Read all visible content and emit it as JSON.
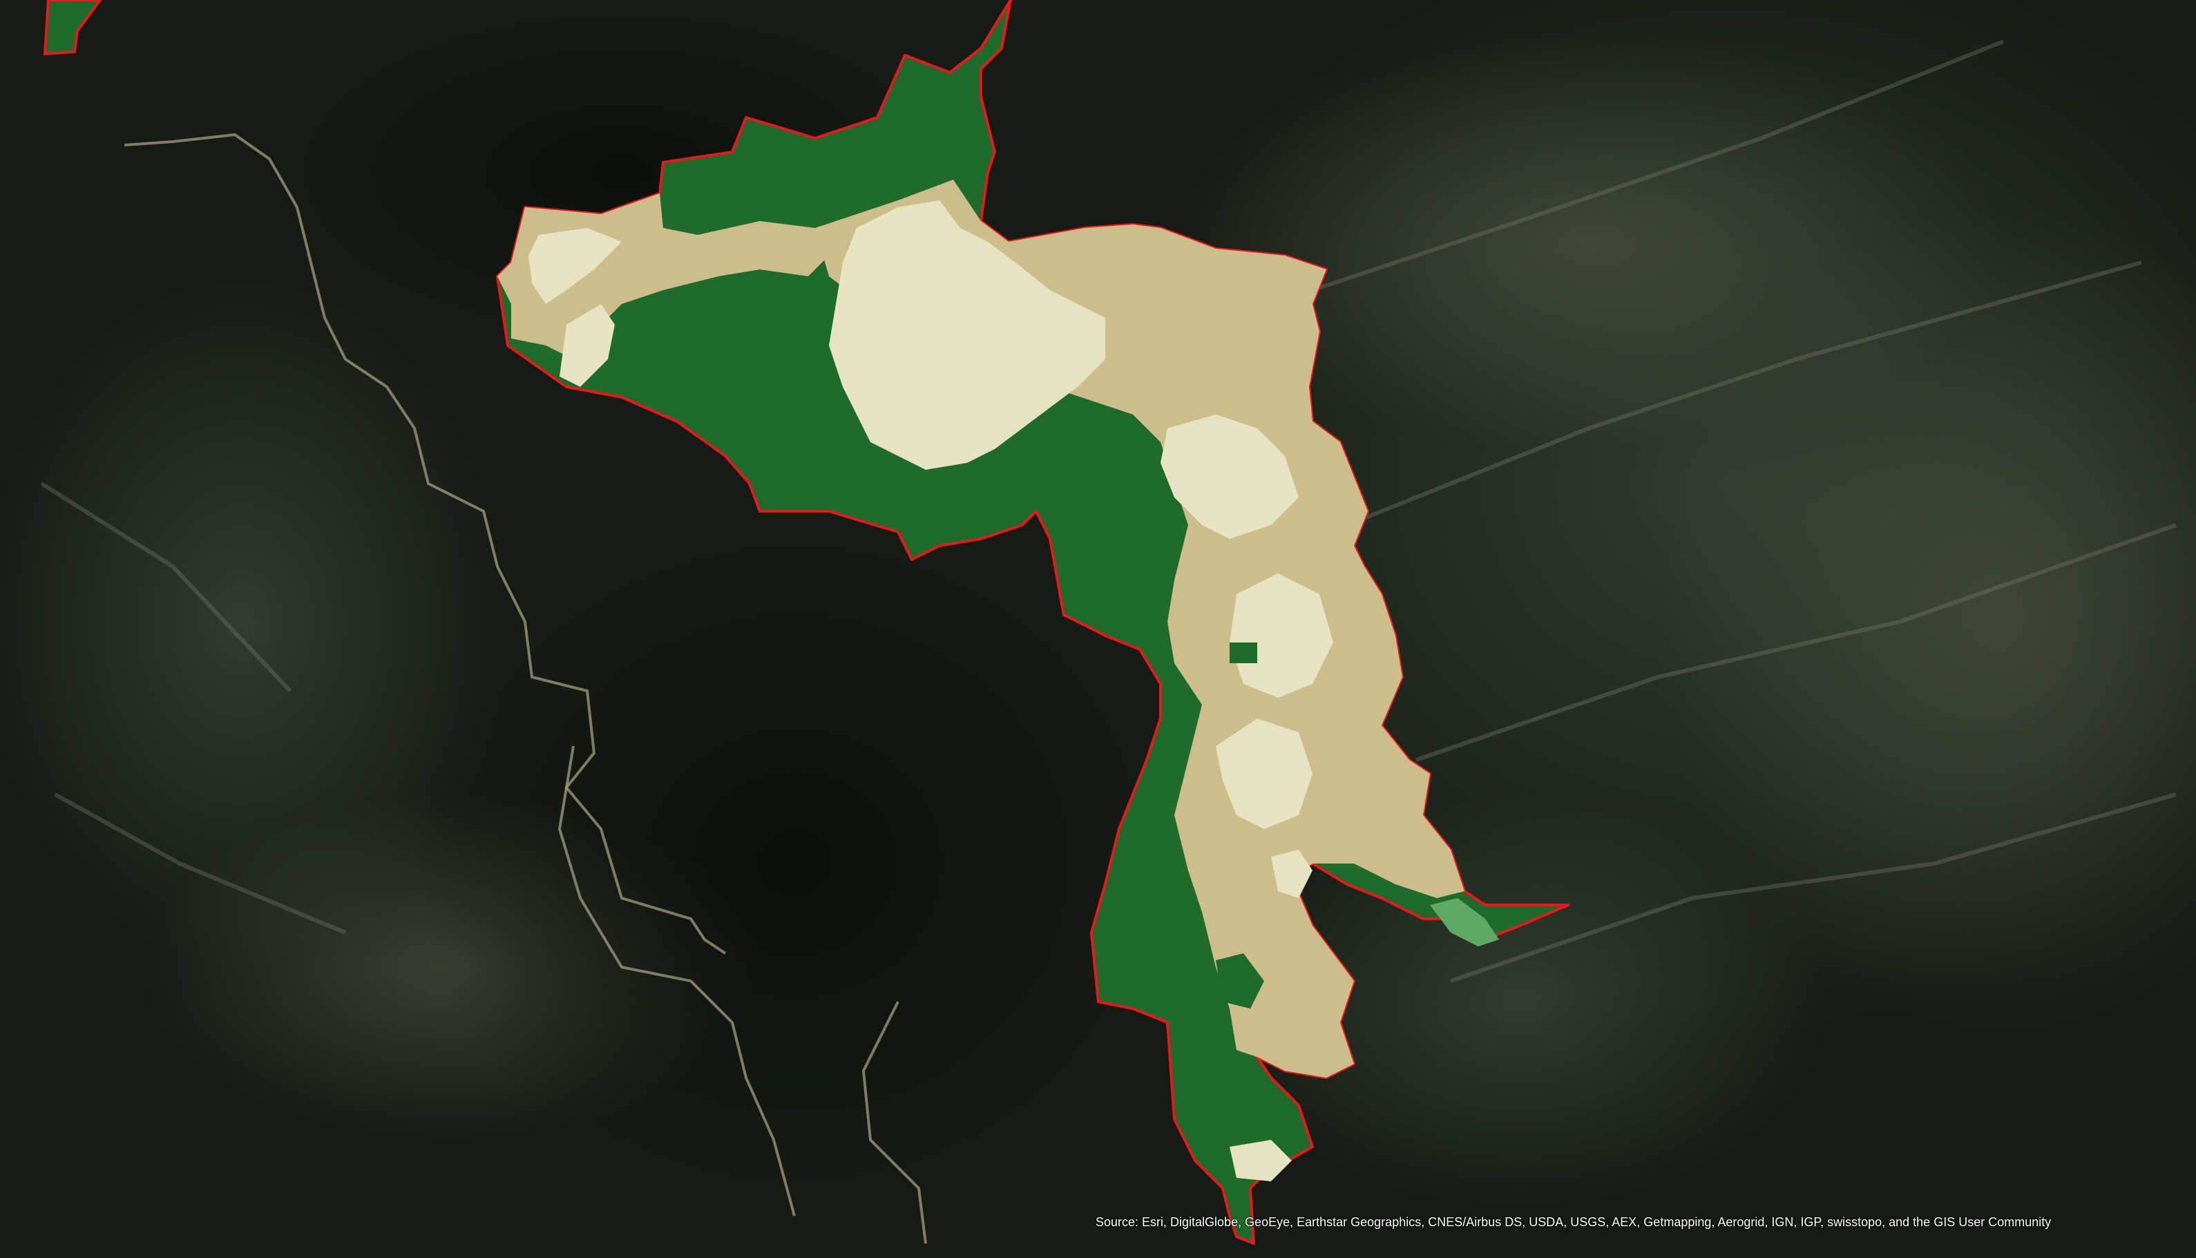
{
  "map": {
    "basemap": "satellite imagery",
    "perimeter_color": "#e8191c",
    "classes": [
      {
        "id": "unburned-high",
        "color": "#1e6b2c"
      },
      {
        "id": "low",
        "color": "#cdbd8a"
      },
      {
        "id": "moderate",
        "color": "#e6e3c2"
      },
      {
        "id": "increased-greenness",
        "color": "#5faa62"
      }
    ]
  },
  "attribution": {
    "text": "Source: Esri, DigitalGlobe, GeoEye, Earthstar Geographics, CNES/Airbus DS, USDA, USGS, AEX, Getmapping, Aerogrid, IGN, IGP, swisstopo, and the GIS User Community"
  }
}
